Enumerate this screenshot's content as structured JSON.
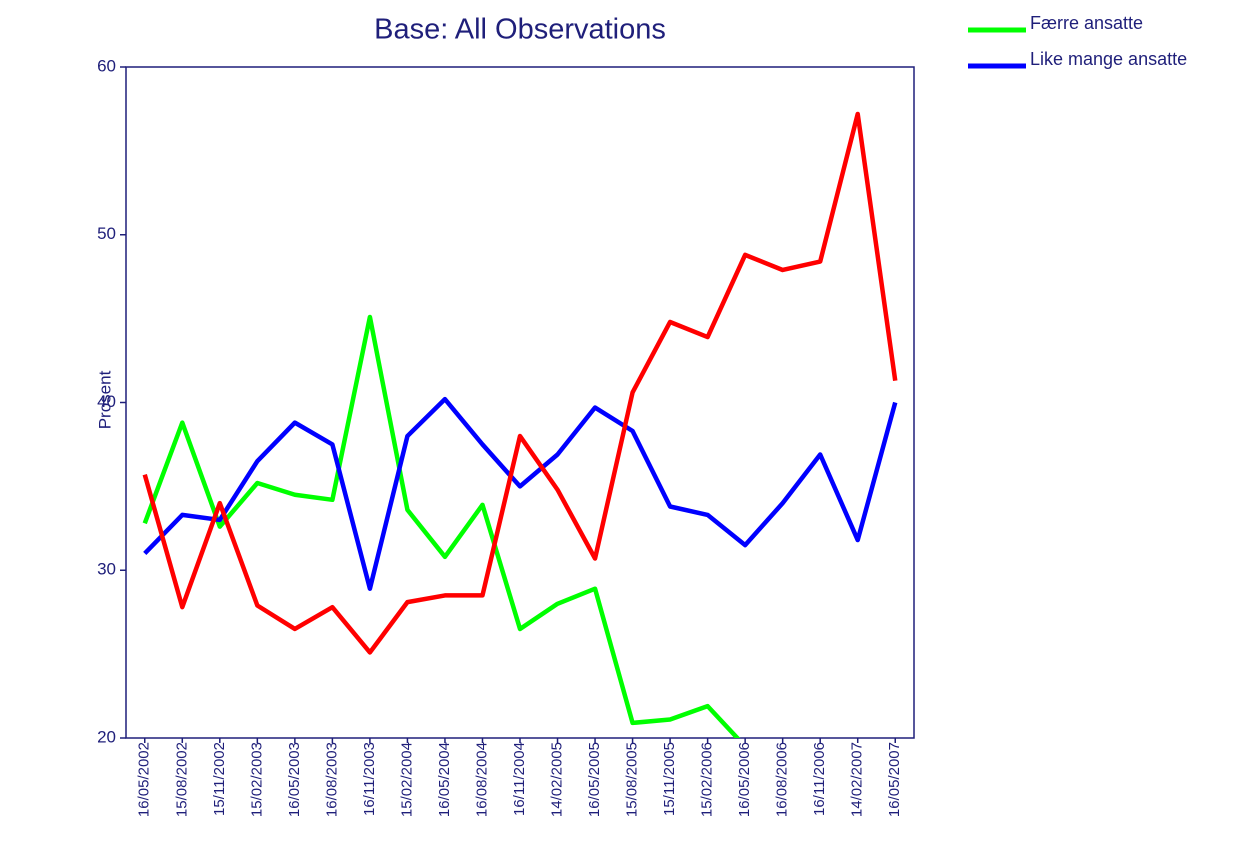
{
  "chart_data": {
    "type": "line",
    "title": "Base:  All Observations",
    "y_label": "Prosent",
    "categories": [
      "16/05/2002",
      "15/08/2002",
      "15/11/2002",
      "15/02/2003",
      "16/05/2003",
      "16/08/2003",
      "16/11/2003",
      "15/02/2004",
      "16/05/2004",
      "16/08/2004",
      "16/11/2004",
      "14/02/2005",
      "16/05/2005",
      "15/08/2005",
      "15/11/2005",
      "15/02/2006",
      "16/05/2006",
      "16/08/2006",
      "16/11/2006",
      "14/02/2007",
      "16/05/2007"
    ],
    "series": [
      {
        "name": "Færre ansatte",
        "color": "#00ff00",
        "values": [
          32.8,
          38.8,
          32.6,
          35.2,
          34.5,
          34.2,
          45.1,
          33.6,
          30.8,
          33.9,
          26.5,
          28.0,
          28.9,
          20.9,
          21.1,
          21.9,
          19.5,
          null,
          null,
          null,
          null
        ]
      },
      {
        "name": "Like mange ansatte",
        "color": "#0000ff",
        "values": [
          31.0,
          33.3,
          33.0,
          36.5,
          38.8,
          37.5,
          28.9,
          38.0,
          40.2,
          37.5,
          35.0,
          36.9,
          39.7,
          38.3,
          33.8,
          33.3,
          31.5,
          34.0,
          36.9,
          31.8,
          40.0
        ]
      },
      {
        "color": "#ff0000",
        "values": [
          35.7,
          27.8,
          34.0,
          27.9,
          26.5,
          27.8,
          25.1,
          28.1,
          28.5,
          28.5,
          38.0,
          34.8,
          30.7,
          40.6,
          44.8,
          43.9,
          48.8,
          47.9,
          48.4,
          57.2,
          41.3
        ]
      }
    ],
    "ylim": [
      20,
      60
    ],
    "yticks": [
      20,
      30,
      40,
      50,
      60
    ]
  }
}
